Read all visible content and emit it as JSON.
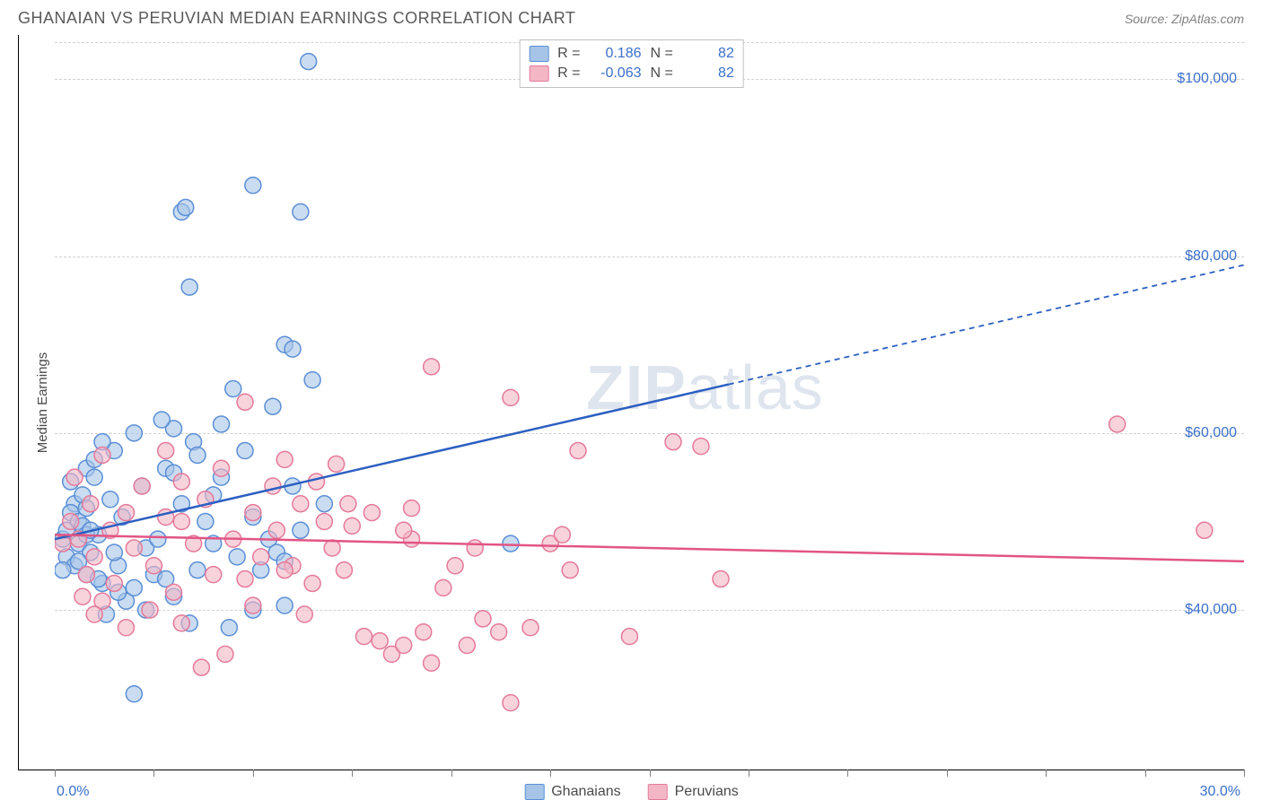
{
  "title": "GHANAIAN VS PERUVIAN MEDIAN EARNINGS CORRELATION CHART",
  "source": "Source: ZipAtlas.com",
  "watermark_a": "ZIP",
  "watermark_b": "atlas",
  "y_axis_label": "Median Earnings",
  "chart": {
    "type": "scatter",
    "xlim": [
      0,
      30
    ],
    "ylim": [
      25000,
      105000
    ],
    "x_ticks": [
      0,
      2.5,
      5,
      7.5,
      10,
      12.5,
      15,
      17.5,
      20,
      22.5,
      25,
      27.5,
      30
    ],
    "x_tick_labels": {
      "0": "0.0%",
      "30": "30.0%"
    },
    "y_gridlines": [
      40000,
      60000,
      80000,
      100000
    ],
    "y_tick_labels": {
      "40000": "$40,000",
      "60000": "$60,000",
      "80000": "$80,000",
      "100000": "$100,000"
    },
    "background_color": "#ffffff",
    "grid_color": "#d0d0d0",
    "marker_radius": 9,
    "marker_opacity": 0.6,
    "series": [
      {
        "name": "Ghanaians",
        "fill": "#a6c4e8",
        "stroke": "#5b8fd6",
        "line_color": "#2c5fc1",
        "R": "0.186",
        "N": "82",
        "trend": {
          "x1": 0,
          "y1": 48000,
          "x2_solid": 17,
          "y2_solid": 65500,
          "x2_dash": 30,
          "y2_dash": 79000
        },
        "points": [
          [
            0.2,
            48000
          ],
          [
            0.3,
            46000
          ],
          [
            0.3,
            49000
          ],
          [
            0.5,
            52000
          ],
          [
            0.5,
            45000
          ],
          [
            0.6,
            47500
          ],
          [
            0.7,
            53000
          ],
          [
            0.4,
            51000
          ],
          [
            0.8,
            56000
          ],
          [
            0.9,
            46500
          ],
          [
            1.0,
            55000
          ],
          [
            1.1,
            48500
          ],
          [
            1.2,
            43000
          ],
          [
            0.6,
            50000
          ],
          [
            0.8,
            44000
          ],
          [
            0.7,
            49500
          ],
          [
            1.3,
            39500
          ],
          [
            1.5,
            58000
          ],
          [
            1.6,
            45000
          ],
          [
            1.8,
            41000
          ],
          [
            2.0,
            60000
          ],
          [
            2.0,
            42500
          ],
          [
            2.2,
            54000
          ],
          [
            2.3,
            47000
          ],
          [
            1.4,
            52500
          ],
          [
            1.7,
            50500
          ],
          [
            1.0,
            57000
          ],
          [
            1.2,
            59000
          ],
          [
            2.5,
            44000
          ],
          [
            2.6,
            48000
          ],
          [
            2.8,
            56000
          ],
          [
            3.0,
            41500
          ],
          [
            3.0,
            60500
          ],
          [
            3.2,
            52000
          ],
          [
            3.4,
            38500
          ],
          [
            3.5,
            59000
          ],
          [
            3.4,
            76500
          ],
          [
            3.6,
            44500
          ],
          [
            3.8,
            50000
          ],
          [
            4.0,
            53000
          ],
          [
            4.0,
            47500
          ],
          [
            4.2,
            61000
          ],
          [
            4.5,
            65000
          ],
          [
            4.6,
            46000
          ],
          [
            4.8,
            58000
          ],
          [
            5.0,
            50500
          ],
          [
            5.0,
            40000
          ],
          [
            5.0,
            88000
          ],
          [
            5.2,
            44500
          ],
          [
            5.4,
            48000
          ],
          [
            5.5,
            63000
          ],
          [
            5.6,
            46500
          ],
          [
            5.8,
            40500
          ],
          [
            5.8,
            70000
          ],
          [
            6.0,
            54000
          ],
          [
            6.0,
            69500
          ],
          [
            6.2,
            49000
          ],
          [
            6.2,
            85000
          ],
          [
            2.0,
            30500
          ],
          [
            2.3,
            40000
          ],
          [
            6.4,
            102000
          ],
          [
            3.2,
            85000
          ],
          [
            3.3,
            85500
          ],
          [
            6.5,
            66000
          ],
          [
            6.8,
            52000
          ],
          [
            5.8,
            45500
          ],
          [
            3.0,
            55500
          ],
          [
            4.4,
            38000
          ],
          [
            11.5,
            47500
          ],
          [
            0.4,
            54500
          ],
          [
            0.2,
            44500
          ],
          [
            0.8,
            51500
          ],
          [
            0.8,
            48500
          ],
          [
            1.5,
            46500
          ],
          [
            1.6,
            42000
          ],
          [
            3.6,
            57500
          ],
          [
            2.7,
            61500
          ],
          [
            4.2,
            55000
          ],
          [
            2.8,
            43500
          ],
          [
            0.9,
            49000
          ],
          [
            1.1,
            43500
          ],
          [
            0.6,
            45500
          ]
        ]
      },
      {
        "name": "Peruvians",
        "fill": "#f4b6c4",
        "stroke": "#e47a9a",
        "line_color": "#e25584",
        "R": "-0.063",
        "N": "82",
        "trend": {
          "x1": 0,
          "y1": 48500,
          "x2_solid": 30,
          "y2_solid": 45500,
          "x2_dash": 30,
          "y2_dash": 45500
        },
        "points": [
          [
            0.2,
            47500
          ],
          [
            0.4,
            50000
          ],
          [
            0.5,
            55000
          ],
          [
            0.6,
            48000
          ],
          [
            0.8,
            44000
          ],
          [
            0.9,
            52000
          ],
          [
            1.0,
            46000
          ],
          [
            1.2,
            57500
          ],
          [
            1.4,
            49000
          ],
          [
            1.5,
            43000
          ],
          [
            1.8,
            51000
          ],
          [
            2.0,
            47000
          ],
          [
            2.2,
            54000
          ],
          [
            2.5,
            45000
          ],
          [
            2.8,
            58000
          ],
          [
            3.0,
            42000
          ],
          [
            3.2,
            50000
          ],
          [
            3.5,
            47500
          ],
          [
            3.8,
            52500
          ],
          [
            4.0,
            44000
          ],
          [
            4.2,
            56000
          ],
          [
            4.5,
            48000
          ],
          [
            4.8,
            43500
          ],
          [
            5.0,
            51000
          ],
          [
            5.2,
            46000
          ],
          [
            5.5,
            54000
          ],
          [
            5.6,
            49000
          ],
          [
            5.8,
            57000
          ],
          [
            6.0,
            45000
          ],
          [
            6.2,
            52000
          ],
          [
            6.5,
            43000
          ],
          [
            6.8,
            50000
          ],
          [
            7.0,
            47000
          ],
          [
            7.3,
            44500
          ],
          [
            7.5,
            49500
          ],
          [
            7.8,
            37000
          ],
          [
            8.0,
            51000
          ],
          [
            8.2,
            36500
          ],
          [
            8.5,
            35000
          ],
          [
            8.8,
            36000
          ],
          [
            9.0,
            48000
          ],
          [
            9.3,
            37500
          ],
          [
            9.5,
            34000
          ],
          [
            9.5,
            67500
          ],
          [
            9.8,
            42500
          ],
          [
            10.1,
            45000
          ],
          [
            10.4,
            36000
          ],
          [
            10.8,
            39000
          ],
          [
            11.2,
            37500
          ],
          [
            11.5,
            29500
          ],
          [
            11.5,
            64000
          ],
          [
            12.0,
            38000
          ],
          [
            12.5,
            47500
          ],
          [
            13.0,
            44500
          ],
          [
            13.2,
            58000
          ],
          [
            14.5,
            37000
          ],
          [
            15.6,
            59000
          ],
          [
            16.3,
            58500
          ],
          [
            16.8,
            43500
          ],
          [
            26.8,
            61000
          ],
          [
            29.0,
            49000
          ],
          [
            3.2,
            38500
          ],
          [
            4.3,
            35000
          ],
          [
            5.0,
            40500
          ],
          [
            6.3,
            39500
          ],
          [
            3.7,
            33500
          ],
          [
            4.8,
            63500
          ],
          [
            2.4,
            40000
          ],
          [
            1.8,
            38000
          ],
          [
            1.2,
            41000
          ],
          [
            1.0,
            39500
          ],
          [
            0.7,
            41500
          ],
          [
            3.2,
            54500
          ],
          [
            2.8,
            50500
          ],
          [
            5.8,
            44500
          ],
          [
            6.6,
            54500
          ],
          [
            7.4,
            52000
          ],
          [
            7.1,
            56500
          ],
          [
            8.8,
            49000
          ],
          [
            9.0,
            51500
          ],
          [
            10.6,
            47000
          ],
          [
            12.8,
            48500
          ]
        ]
      }
    ],
    "legend_bottom": [
      {
        "label": "Ghanaians",
        "fill": "#a6c4e8",
        "stroke": "#5b8fd6"
      },
      {
        "label": "Peruvians",
        "fill": "#f4b6c4",
        "stroke": "#e47a9a"
      }
    ]
  }
}
